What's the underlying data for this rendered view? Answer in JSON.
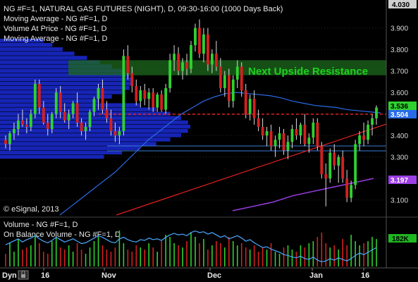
{
  "chart_data": {
    "type": "candlestick",
    "title": "NG #F=1, NATURAL GAS FUTURES (NIGHT), D, 09:30-16:00 (1000 Days Back)",
    "studies": [
      "Moving Average - NG #F=1, D",
      "Volume At Price - NG #F=1, D",
      "Moving Average - NG #F=1, D"
    ],
    "lower_studies": [
      "Volume - NG #F=1, D",
      "On Balance Volume - NG #F=1, D"
    ],
    "copyright": "© eSignal, 2013",
    "annotation": "Next Upside Resistance",
    "watermark": "Dyn",
    "y_ticks": [
      "3.100",
      "3.200",
      "3.300",
      "3.400",
      "3.500",
      "3.600",
      "3.700",
      "3.800",
      "3.900",
      "4.030"
    ],
    "x_ticks": [
      "16",
      "Nov",
      "Dec",
      "Jan",
      "16"
    ],
    "ylim": [
      3.03,
      4.03
    ],
    "last_price": "3.536",
    "ma_tag": "3.504",
    "ma_tag_2": "3.197",
    "volume_tag": "182K",
    "resistance_zone": [
      3.68,
      3.75
    ],
    "support_line": 3.5,
    "candles": [
      [
        3.38,
        3.4,
        3.34,
        3.36
      ],
      [
        3.36,
        3.42,
        3.33,
        3.41
      ],
      [
        3.41,
        3.46,
        3.38,
        3.43
      ],
      [
        3.43,
        3.5,
        3.4,
        3.47
      ],
      [
        3.47,
        3.52,
        3.44,
        3.45
      ],
      [
        3.45,
        3.48,
        3.41,
        3.44
      ],
      [
        3.44,
        3.52,
        3.42,
        3.5
      ],
      [
        3.5,
        3.66,
        3.48,
        3.64
      ],
      [
        3.64,
        3.66,
        3.5,
        3.53
      ],
      [
        3.53,
        3.56,
        3.45,
        3.46
      ],
      [
        3.46,
        3.5,
        3.4,
        3.43
      ],
      [
        3.43,
        3.51,
        3.41,
        3.5
      ],
      [
        3.5,
        3.62,
        3.48,
        3.6
      ],
      [
        3.6,
        3.63,
        3.48,
        3.51
      ],
      [
        3.51,
        3.55,
        3.46,
        3.47
      ],
      [
        3.47,
        3.52,
        3.43,
        3.5
      ],
      [
        3.5,
        3.56,
        3.48,
        3.55
      ],
      [
        3.55,
        3.6,
        3.44,
        3.46
      ],
      [
        3.46,
        3.48,
        3.4,
        3.42
      ],
      [
        3.42,
        3.46,
        3.38,
        3.44
      ],
      [
        3.44,
        3.52,
        3.42,
        3.51
      ],
      [
        3.51,
        3.58,
        3.49,
        3.57
      ],
      [
        3.57,
        3.64,
        3.52,
        3.62
      ],
      [
        3.62,
        3.66,
        3.5,
        3.52
      ],
      [
        3.52,
        3.56,
        3.46,
        3.48
      ],
      [
        3.48,
        3.52,
        3.4,
        3.42
      ],
      [
        3.42,
        3.46,
        3.37,
        3.4
      ],
      [
        3.4,
        3.44,
        3.36,
        3.42
      ],
      [
        3.42,
        3.8,
        3.4,
        3.77
      ],
      [
        3.77,
        3.82,
        3.66,
        3.69
      ],
      [
        3.69,
        3.72,
        3.6,
        3.63
      ],
      [
        3.63,
        3.66,
        3.54,
        3.56
      ],
      [
        3.56,
        3.63,
        3.53,
        3.61
      ],
      [
        3.61,
        3.64,
        3.54,
        3.57
      ],
      [
        3.57,
        3.62,
        3.52,
        3.6
      ],
      [
        3.6,
        3.62,
        3.51,
        3.53
      ],
      [
        3.53,
        3.6,
        3.51,
        3.59
      ],
      [
        3.59,
        3.61,
        3.51,
        3.52
      ],
      [
        3.52,
        3.64,
        3.5,
        3.62
      ],
      [
        3.62,
        3.78,
        3.6,
        3.75
      ],
      [
        3.75,
        3.82,
        3.7,
        3.78
      ],
      [
        3.78,
        3.81,
        3.68,
        3.7
      ],
      [
        3.7,
        3.76,
        3.66,
        3.74
      ],
      [
        3.74,
        3.78,
        3.68,
        3.71
      ],
      [
        3.71,
        3.84,
        3.69,
        3.82
      ],
      [
        3.82,
        3.92,
        3.79,
        3.9
      ],
      [
        3.9,
        3.94,
        3.76,
        3.78
      ],
      [
        3.78,
        3.9,
        3.74,
        3.87
      ],
      [
        3.87,
        3.9,
        3.7,
        3.73
      ],
      [
        3.73,
        3.8,
        3.69,
        3.78
      ],
      [
        3.78,
        3.84,
        3.7,
        3.72
      ],
      [
        3.72,
        3.76,
        3.6,
        3.62
      ],
      [
        3.62,
        3.7,
        3.58,
        3.68
      ],
      [
        3.68,
        3.71,
        3.53,
        3.56
      ],
      [
        3.56,
        3.68,
        3.53,
        3.66
      ],
      [
        3.66,
        3.75,
        3.62,
        3.72
      ],
      [
        3.72,
        3.74,
        3.58,
        3.61
      ],
      [
        3.61,
        3.64,
        3.48,
        3.5
      ],
      [
        3.5,
        3.59,
        3.47,
        3.57
      ],
      [
        3.57,
        3.61,
        3.45,
        3.48
      ],
      [
        3.48,
        3.52,
        3.42,
        3.44
      ],
      [
        3.44,
        3.48,
        3.38,
        3.4
      ],
      [
        3.4,
        3.44,
        3.35,
        3.42
      ],
      [
        3.42,
        3.45,
        3.33,
        3.35
      ],
      [
        3.35,
        3.4,
        3.3,
        3.38
      ],
      [
        3.38,
        3.44,
        3.34,
        3.41
      ],
      [
        3.41,
        3.43,
        3.31,
        3.33
      ],
      [
        3.33,
        3.4,
        3.29,
        3.37
      ],
      [
        3.37,
        3.45,
        3.34,
        3.43
      ],
      [
        3.43,
        3.48,
        3.38,
        3.4
      ],
      [
        3.4,
        3.46,
        3.36,
        3.45
      ],
      [
        3.45,
        3.5,
        3.35,
        3.36
      ],
      [
        3.36,
        3.41,
        3.32,
        3.39
      ],
      [
        3.39,
        3.48,
        3.36,
        3.46
      ],
      [
        3.46,
        3.48,
        3.33,
        3.35
      ],
      [
        3.35,
        3.37,
        3.2,
        3.22
      ],
      [
        3.22,
        3.27,
        3.07,
        3.2
      ],
      [
        3.2,
        3.34,
        3.18,
        3.32
      ],
      [
        3.32,
        3.36,
        3.24,
        3.26
      ],
      [
        3.26,
        3.31,
        3.18,
        3.3
      ],
      [
        3.3,
        3.33,
        3.18,
        3.2
      ],
      [
        3.2,
        3.24,
        3.09,
        3.11
      ],
      [
        3.11,
        3.19,
        3.09,
        3.17
      ],
      [
        3.17,
        3.38,
        3.15,
        3.36
      ],
      [
        3.36,
        3.42,
        3.33,
        3.4
      ],
      [
        3.4,
        3.46,
        3.35,
        3.38
      ],
      [
        3.38,
        3.47,
        3.36,
        3.45
      ],
      [
        3.45,
        3.5,
        3.4,
        3.48
      ],
      [
        3.48,
        3.54,
        3.45,
        3.53
      ]
    ],
    "ma_fast": [
      3.03,
      3.07,
      3.11,
      3.15,
      3.19,
      3.23,
      3.28,
      3.33,
      3.38,
      3.42,
      3.46,
      3.5,
      3.53,
      3.56,
      3.58,
      3.595,
      3.6,
      3.595,
      3.59,
      3.585,
      3.575,
      3.56,
      3.55,
      3.54,
      3.535,
      3.53,
      3.52,
      3.515,
      3.51,
      3.505
    ],
    "ma_slow": [
      3.05,
      3.07,
      3.09,
      3.12,
      3.14,
      3.16,
      3.18,
      3.2
    ],
    "volume": [
      0.3,
      0.55,
      0.35,
      0.65,
      0.4,
      0.45,
      0.5,
      0.75,
      0.55,
      0.35,
      0.3,
      0.6,
      0.7,
      0.45,
      0.4,
      0.5,
      0.35,
      0.55,
      0.4,
      0.3,
      0.45,
      0.6,
      0.7,
      0.5,
      0.4,
      0.35,
      0.45,
      0.85,
      0.55,
      0.4,
      0.35,
      0.5,
      0.45,
      0.4,
      0.55,
      0.45,
      0.35,
      0.6,
      0.75,
      0.7,
      0.55,
      0.5,
      0.45,
      0.6,
      0.8,
      0.7,
      0.55,
      0.65,
      0.4,
      0.5,
      0.6,
      0.55,
      0.45,
      0.7,
      0.6,
      0.5,
      0.55,
      0.45,
      0.4,
      0.5,
      0.35,
      0.45,
      0.4,
      0.55,
      0.35,
      0.3,
      0.45,
      0.5,
      0.4,
      0.35,
      0.5,
      0.45,
      0.55,
      0.6,
      0.7,
      0.8,
      0.55,
      0.45,
      0.5,
      0.4,
      0.65,
      0.5,
      0.75,
      0.6,
      0.5,
      0.55,
      0.6,
      0.7,
      0.65
    ],
    "obv": [
      0.55,
      0.6,
      0.65,
      0.7,
      0.62,
      0.68,
      0.72,
      0.78,
      0.7,
      0.64,
      0.6,
      0.66,
      0.74,
      0.68,
      0.62,
      0.66,
      0.7,
      0.64,
      0.58,
      0.6,
      0.66,
      0.72,
      0.78,
      0.74,
      0.68,
      0.62,
      0.6,
      0.7,
      0.74,
      0.68,
      0.64,
      0.62,
      0.68,
      0.66,
      0.72,
      0.68,
      0.7,
      0.66,
      0.74,
      0.8,
      0.84,
      0.8,
      0.82,
      0.78,
      0.86,
      0.9,
      0.86,
      0.88,
      0.82,
      0.86,
      0.8,
      0.74,
      0.78,
      0.7,
      0.74,
      0.78,
      0.72,
      0.64,
      0.68,
      0.6,
      0.54,
      0.48,
      0.5,
      0.44,
      0.4,
      0.36,
      0.3,
      0.28,
      0.24,
      0.22,
      0.26,
      0.2,
      0.18,
      0.24,
      0.16,
      0.12,
      0.14,
      0.2,
      0.16,
      0.22,
      0.18,
      0.14,
      0.2,
      0.28,
      0.34,
      0.3,
      0.36,
      0.42,
      0.48
    ]
  },
  "labels": {
    "line1": "NG #F=1, NATURAL GAS FUTURES (NIGHT), D, 09:30-16:00 (1000 Days Back)",
    "line2": "Moving Average - NG #F=1, D",
    "line3": "Volume At Price - NG #F=1, D",
    "line4": "Moving Average - NG #F=1, D",
    "vol1": "Volume - NG #F=1, D",
    "vol2": "On Balance Volume - NG #F=1, D"
  },
  "colors": {
    "up": "#2fd12f",
    "down": "#d42020",
    "vap": "#1a2bd6",
    "ma_fast": "#2a6be8",
    "ma_slow": "#9b3ee6",
    "trend": "#e02020",
    "resistance": "#1e6a1e",
    "obv": "#4aa9ff"
  }
}
